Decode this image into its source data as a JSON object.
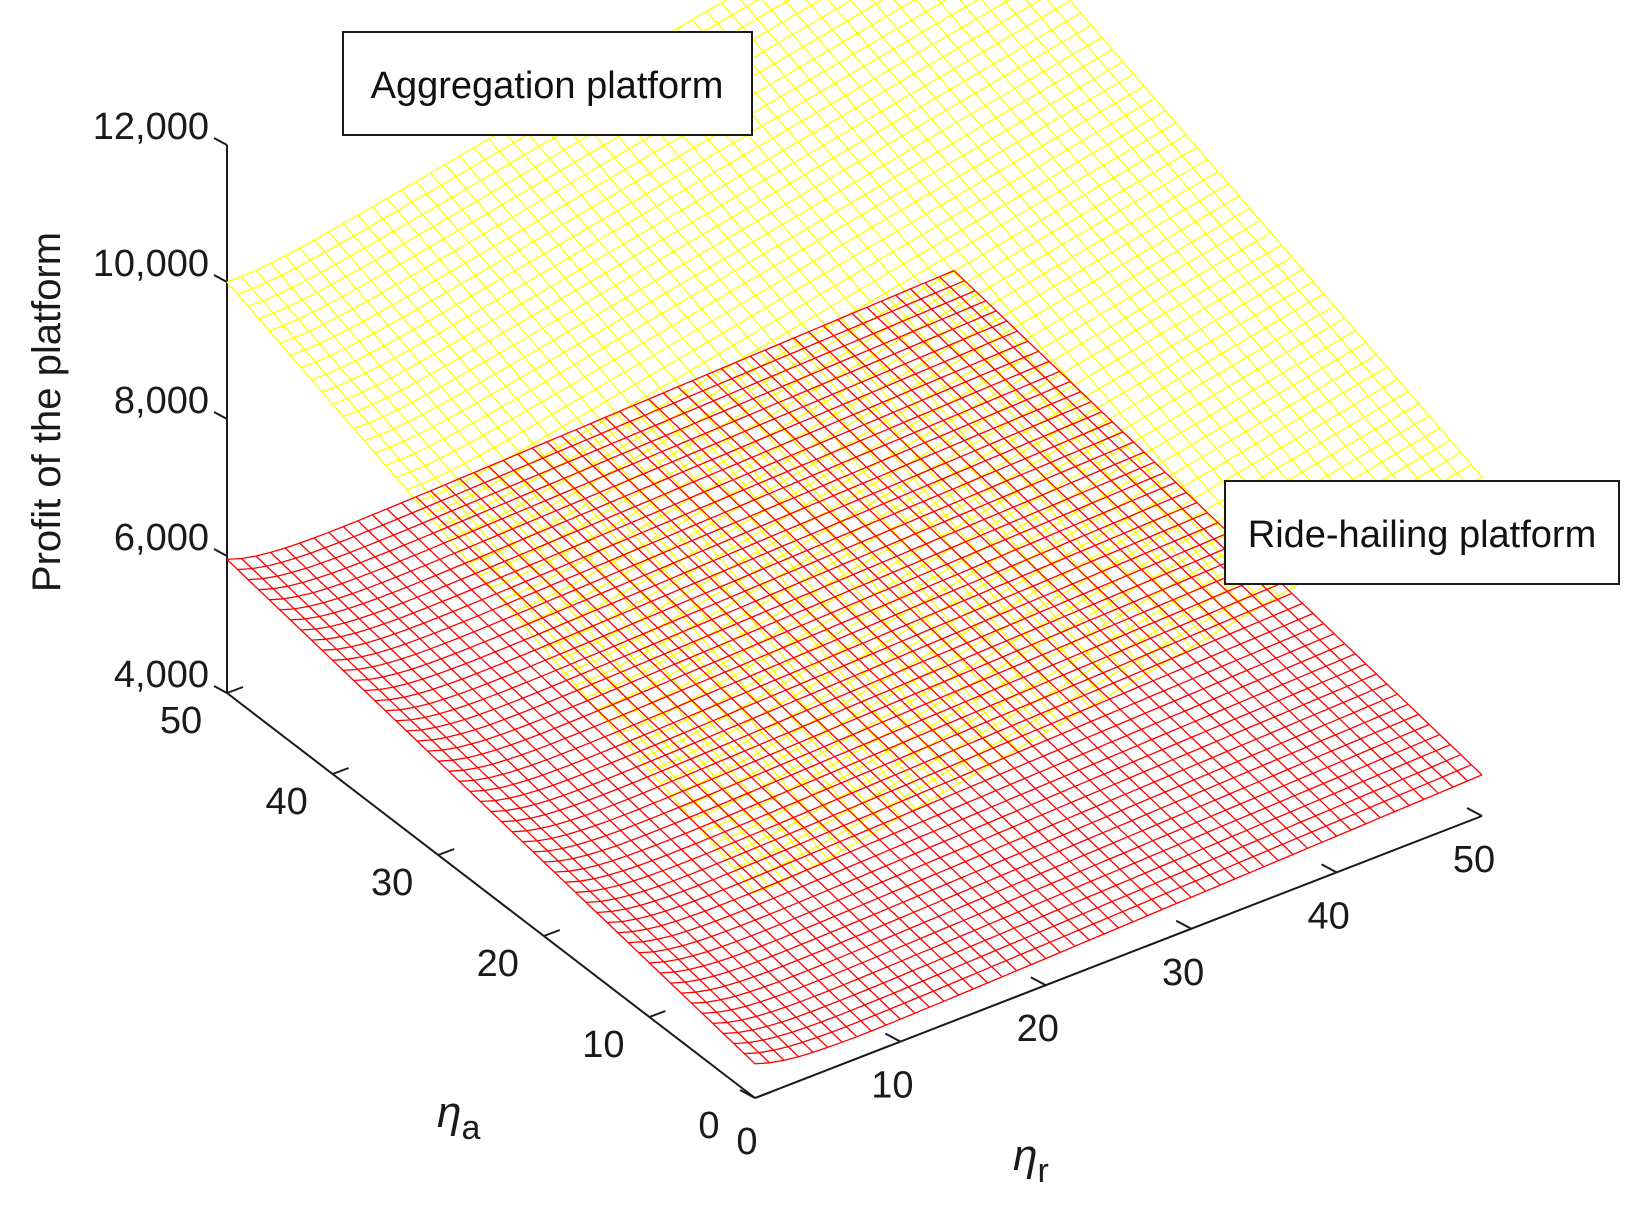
{
  "chart_data": {
    "type": "surface",
    "title": "",
    "zlabel": "Profit of the platform",
    "xlabel": {
      "symbol": "η",
      "subscript": "r"
    },
    "ylabel": {
      "symbol": "η",
      "subscript": "a"
    },
    "xlim": [
      0,
      50
    ],
    "ylim": [
      0,
      50
    ],
    "zlim": [
      4000,
      12000
    ],
    "x_ticks": [
      "0",
      "10",
      "20",
      "30",
      "40",
      "50"
    ],
    "y_ticks": [
      "0",
      "10",
      "20",
      "30",
      "40",
      "50"
    ],
    "z_ticks": [
      "4,000",
      "6,000",
      "8,000",
      "10,000",
      "12,000"
    ],
    "grid_resolution": 50,
    "series": [
      {
        "name": "Aggregation platform",
        "color": "#ffff00",
        "corners": {
          "r0_a0": 6850,
          "r50_a0": 8950,
          "r0_a50": 9850,
          "r50_a50": 11950
        },
        "edge_rise": 150
      },
      {
        "name": "Ride-hailing platform",
        "color": "#ff0000",
        "corners": {
          "r0_a0": 4250,
          "r50_a0": 4600,
          "r0_a50": 5700,
          "r50_a50": 6050
        },
        "edge_rise": 250
      }
    ]
  }
}
